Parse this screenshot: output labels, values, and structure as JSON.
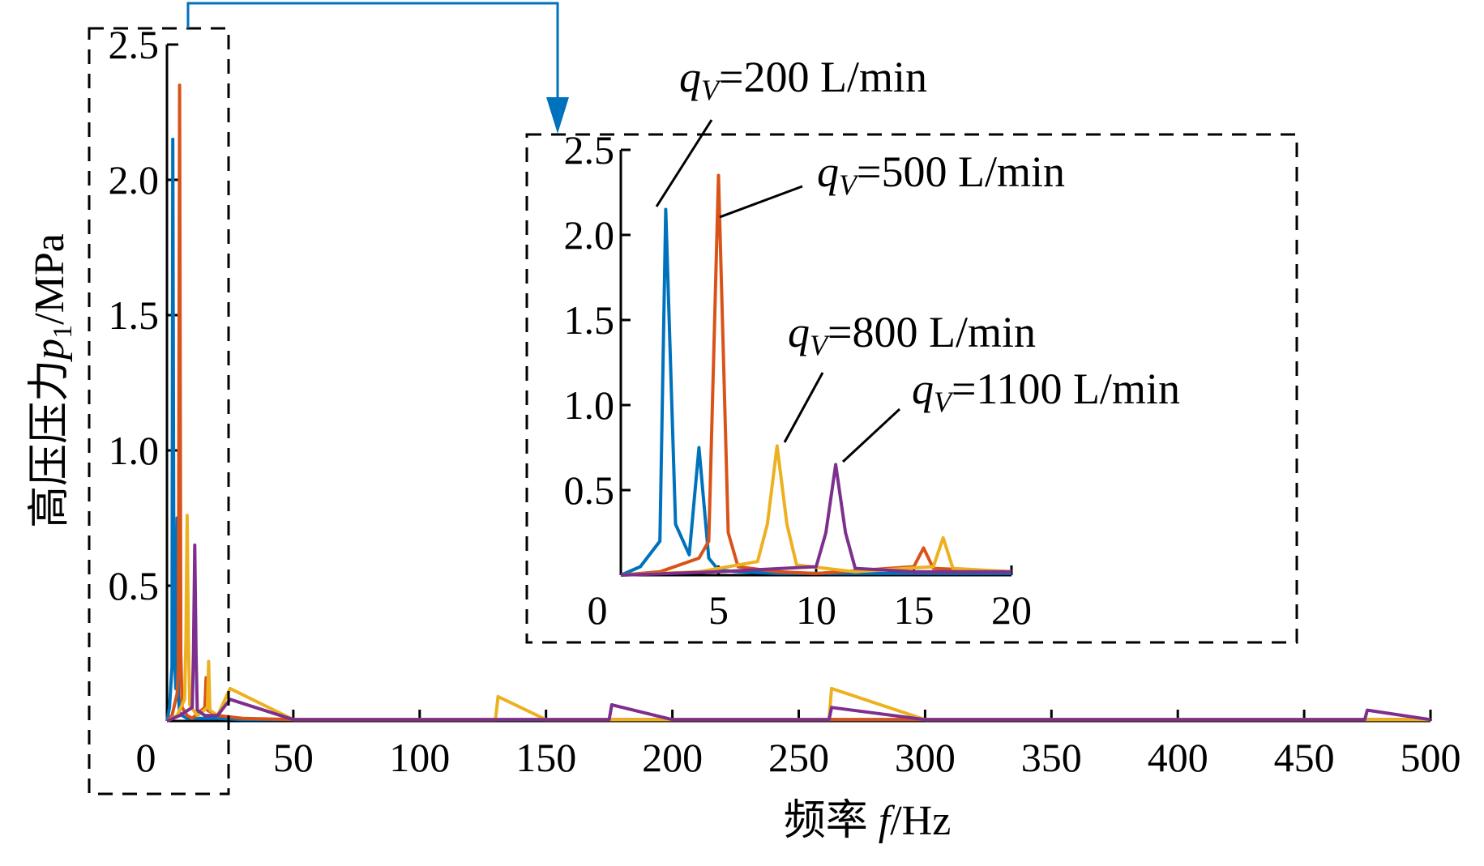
{
  "colors": {
    "q200": "#0072BD",
    "q500": "#D95319",
    "q800": "#EDB120",
    "q1100": "#7E2F8E",
    "arrow": "#0072BD",
    "dashed": "#000000"
  },
  "main": {
    "ylabel_parts": {
      "cjk": "高压压力",
      "var": "p",
      "sub": "1",
      "unit": "/MPa"
    },
    "xlabel_parts": {
      "cjk": "频率 ",
      "var": "f",
      "unit": "/Hz"
    }
  },
  "legend_annotations": [
    {
      "q": "q",
      "sub": "V",
      "text": "=200 L/min"
    },
    {
      "q": "q",
      "sub": "V",
      "text": "=500 L/min"
    },
    {
      "q": "q",
      "sub": "V",
      "text": "=800 L/min"
    },
    {
      "q": "q",
      "sub": "V",
      "text": "=1100 L/min"
    }
  ],
  "chart_data": [
    {
      "type": "line",
      "title": "",
      "xlabel": "频率 f/Hz",
      "ylabel": "高压压力 p1/MPa",
      "xlim": [
        0,
        500
      ],
      "ylim": [
        0,
        2.5
      ],
      "xticks": [
        "0",
        "50",
        "100",
        "150",
        "200",
        "250",
        "300",
        "350",
        "400",
        "450",
        "500"
      ],
      "yticks": [
        "0.5",
        "1.0",
        "1.5",
        "2.0",
        "2.5"
      ],
      "series": [
        {
          "name": "qV=200 L/min",
          "color": "#0072BD",
          "x": [
            0,
            1,
            2,
            2.3,
            2.8,
            3.5,
            4.0,
            4.5,
            5,
            6,
            8,
            10,
            15,
            20,
            30,
            50,
            100,
            200,
            300,
            400,
            500
          ],
          "y": [
            0,
            0.05,
            0.2,
            2.15,
            0.3,
            0.12,
            0.75,
            0.1,
            0.03,
            0.02,
            0.01,
            0.01,
            0.01,
            0.01,
            0.005,
            0.005,
            0.005,
            0.005,
            0.005,
            0.005,
            0.005
          ]
        },
        {
          "name": "qV=500 L/min",
          "color": "#D95319",
          "x": [
            0,
            2,
            4,
            4.5,
            5.0,
            5.5,
            6,
            8,
            10,
            15,
            15.5,
            16,
            20,
            30,
            50,
            100,
            150,
            200,
            260,
            300,
            400,
            500
          ],
          "y": [
            0,
            0.02,
            0.1,
            0.2,
            2.35,
            0.25,
            0.05,
            0.02,
            0.01,
            0.05,
            0.16,
            0.04,
            0.02,
            0.01,
            0.005,
            0.005,
            0.005,
            0.005,
            0.005,
            0.005,
            0.005,
            0.005
          ]
        },
        {
          "name": "qV=800 L/min",
          "color": "#EDB120",
          "x": [
            0,
            4,
            7,
            7.5,
            8.0,
            8.5,
            9,
            12,
            16,
            16.5,
            17,
            20,
            25,
            50,
            100,
            130,
            131,
            150,
            200,
            262,
            263,
            300,
            400,
            500
          ],
          "y": [
            0,
            0.02,
            0.08,
            0.3,
            0.76,
            0.3,
            0.06,
            0.02,
            0.05,
            0.22,
            0.04,
            0.02,
            0.12,
            0.005,
            0.005,
            0.005,
            0.09,
            0.005,
            0.005,
            0.005,
            0.12,
            0.005,
            0.005,
            0.005
          ]
        },
        {
          "name": "qV=1100 L/min",
          "color": "#7E2F8E",
          "x": [
            0,
            5,
            10,
            10.5,
            11.0,
            11.5,
            12,
            15,
            20,
            25,
            50,
            100,
            175,
            176,
            200,
            262,
            263,
            300,
            400,
            474,
            475,
            500
          ],
          "y": [
            0,
            0.02,
            0.05,
            0.25,
            0.65,
            0.25,
            0.04,
            0.02,
            0.02,
            0.08,
            0.005,
            0.005,
            0.005,
            0.06,
            0.005,
            0.005,
            0.05,
            0.005,
            0.005,
            0.005,
            0.04,
            0.005
          ]
        }
      ]
    },
    {
      "type": "line",
      "title": "",
      "xlabel": "",
      "ylabel": "",
      "xlim": [
        0,
        20
      ],
      "ylim": [
        0,
        2.5
      ],
      "xticks": [
        "0",
        "5",
        "10",
        "15",
        "20"
      ],
      "yticks": [
        "0.5",
        "1.0",
        "1.5",
        "2.0",
        "2.5"
      ]
    }
  ]
}
